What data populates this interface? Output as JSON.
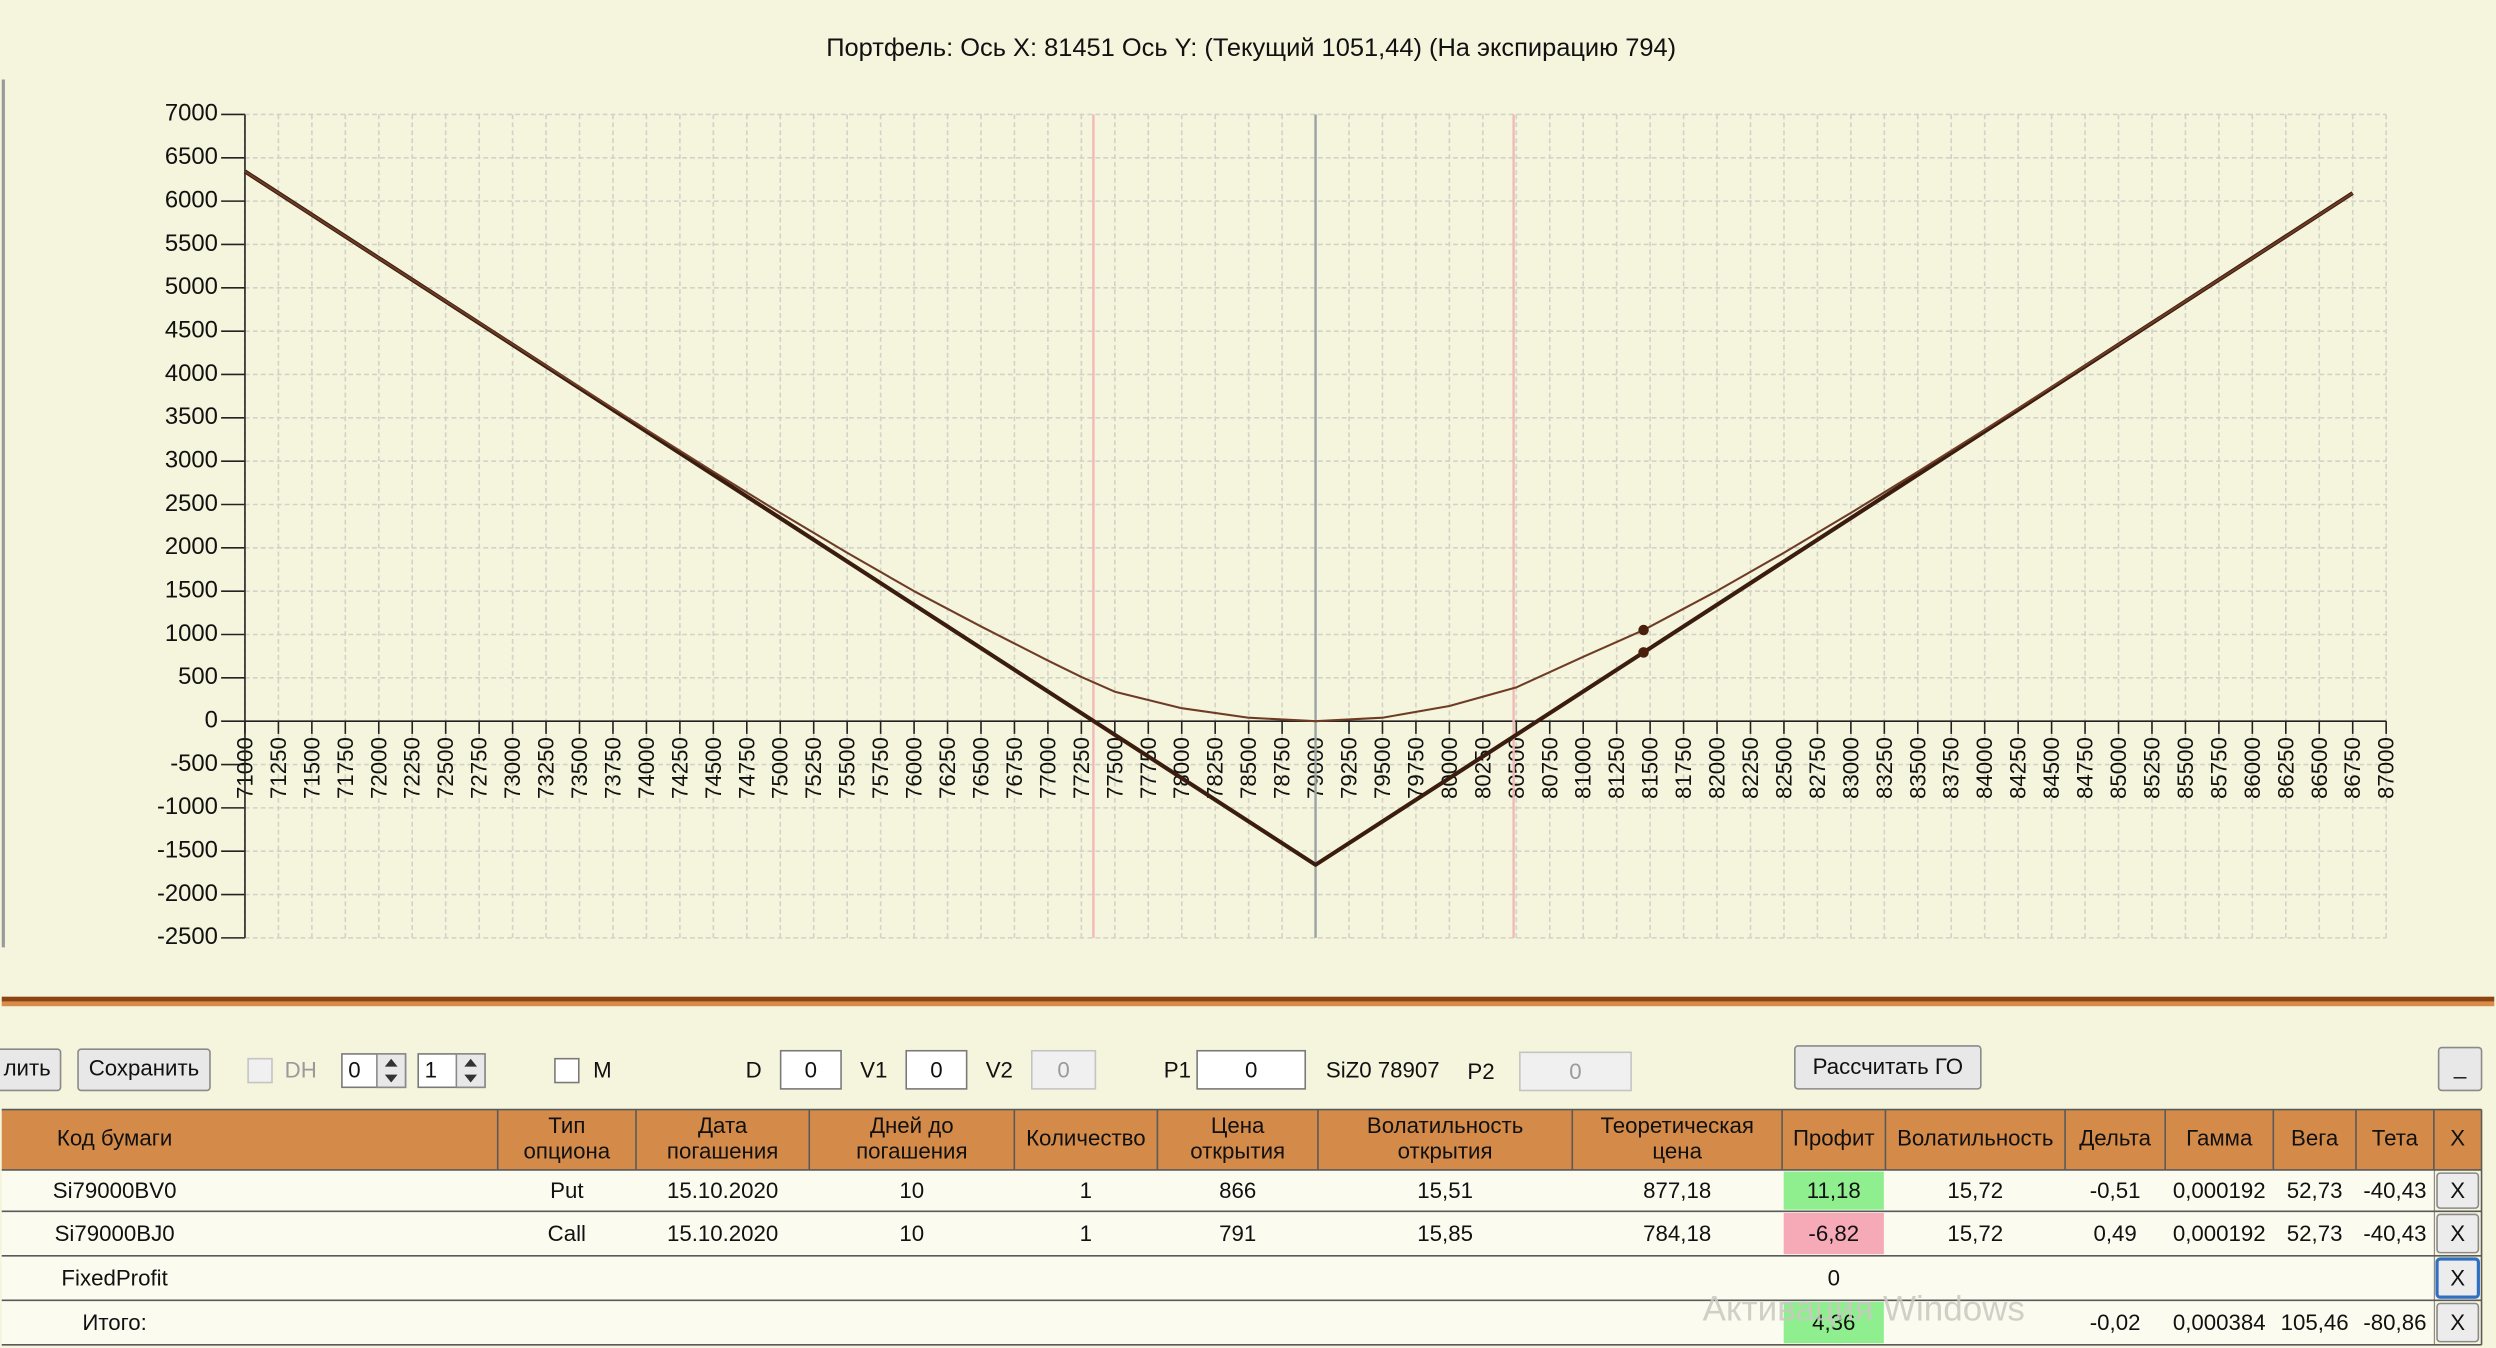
{
  "chart_data": {
    "type": "line",
    "title": "Портфель: Ось X: 81451 Ось Y:  (Текущий 1051,44)  (На экспирацию 794)",
    "xlim": [
      71000,
      87000
    ],
    "xticks": [
      71000,
      71250,
      71500,
      71750,
      72000,
      72250,
      72500,
      72750,
      73000,
      73250,
      73500,
      73750,
      74000,
      74250,
      74500,
      74750,
      75000,
      75250,
      75500,
      75750,
      76000,
      76250,
      76500,
      76750,
      77000,
      77250,
      77500,
      77750,
      78000,
      78250,
      78500,
      78750,
      79000,
      79250,
      79500,
      79750,
      80000,
      80250,
      80500,
      80750,
      81000,
      81250,
      81500,
      81750,
      82000,
      82250,
      82500,
      82750,
      83000,
      83250,
      83500,
      83750,
      84000,
      84250,
      84500,
      84750,
      85000,
      85250,
      85500,
      85750,
      86000,
      86250,
      86500,
      86750,
      87000
    ],
    "ylim": [
      -2500,
      7000
    ],
    "yticks": [
      -2500,
      -2000,
      -1500,
      -1000,
      -500,
      0,
      500,
      1000,
      1500,
      2000,
      2500,
      3000,
      3500,
      4000,
      4500,
      5000,
      5500,
      6000,
      6500,
      7000
    ],
    "grid": true,
    "series": [
      {
        "color": "#3a1d0e",
        "x": [
          71000,
          79000,
          86750
        ],
        "values": [
          6343,
          -1657,
          6093
        ]
      },
      {
        "color": "#6e3b26",
        "x": [
          71000,
          72000,
          73000,
          74000,
          74500,
          75000,
          75500,
          76000,
          76500,
          77000,
          77250,
          77500,
          78000,
          78500,
          79000,
          79500,
          80000,
          80500,
          81000,
          81451,
          82000,
          82500,
          83000,
          83500,
          84000,
          85000,
          86000,
          86750
        ],
        "values": [
          6343,
          5343,
          4348,
          3363,
          2878,
          2403,
          1943,
          1500,
          1093,
          700,
          510,
          340,
          150,
          40,
          0,
          40,
          175,
          390,
          743,
          1051.44,
          1503,
          1943,
          2403,
          2878,
          3363,
          4348,
          5343,
          6093
        ]
      }
    ],
    "markers": [
      {
        "x": 81451,
        "y": 1051.44
      },
      {
        "x": 81451,
        "y": 794
      }
    ],
    "vlines": [
      {
        "x": 77340,
        "color": "#f2b8b8"
      },
      {
        "x": 79000,
        "color": "#9aa3a3"
      },
      {
        "x": 80480,
        "color": "#f2b8b8"
      }
    ]
  },
  "toolbar": {
    "delete": "лить",
    "save": "Сохранить",
    "dh": "DH",
    "spin1": 0,
    "spin2": 1,
    "m": "M",
    "d_label": "D",
    "d_value": 0,
    "v1_label": "V1",
    "v1_value": 0,
    "v2_label": "V2",
    "v2_value": 0,
    "p1_label": "P1",
    "p1_value": 0,
    "instrument": "SiZ0 78907",
    "p2_label": "P2",
    "p2_value": 0,
    "calc": "Рассчитать ГО",
    "minimize": "_"
  },
  "table": {
    "columns": [
      [
        "Код бумаги"
      ],
      [
        "Тип",
        "опциона"
      ],
      [
        "Дата",
        "погашения"
      ],
      [
        "Дней до",
        "погашения"
      ],
      [
        "Количество"
      ],
      [
        "Цена",
        "открытия"
      ],
      [
        "Волатильность",
        "открытия"
      ],
      [
        "Теоретическая",
        "цена"
      ],
      [
        "Профит"
      ],
      [
        "Волатильность"
      ],
      [
        "Дельта"
      ],
      [
        "Гамма"
      ],
      [
        "Вега"
      ],
      [
        "Тета"
      ],
      [
        "X"
      ]
    ],
    "rows": [
      [
        "Si79000BV0",
        "Put",
        "15.10.2020",
        10,
        1,
        866,
        "15,51",
        "877,18",
        "11,18",
        "15,72",
        "-0,51",
        "0,000192",
        "52,73",
        "-40,43",
        "X"
      ],
      [
        "Si79000BJ0",
        "Call",
        "15.10.2020",
        10,
        1,
        791,
        "15,85",
        "784,18",
        "-6,82",
        "15,72",
        "0,49",
        "0,000192",
        "52,73",
        "-40,43",
        "X"
      ],
      [
        "FixedProfit",
        null,
        null,
        null,
        null,
        null,
        null,
        null,
        0,
        null,
        null,
        null,
        null,
        null,
        "X"
      ],
      [
        "Итого:",
        null,
        null,
        null,
        null,
        null,
        null,
        null,
        "4,36",
        null,
        "-0,02",
        "0,000384",
        "105,46",
        "-80,86",
        "X"
      ]
    ]
  },
  "watermark": "Активация Windows"
}
